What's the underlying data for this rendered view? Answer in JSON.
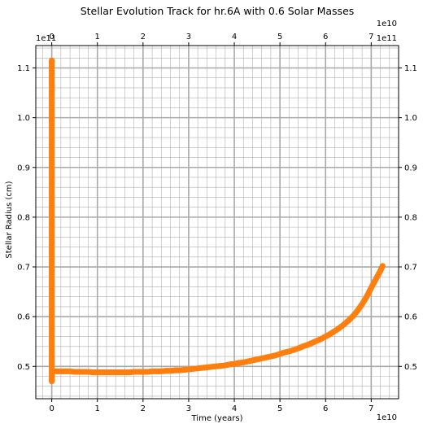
{
  "chart_data": {
    "type": "scatter",
    "title": "Stellar Evolution Track for hr.6A with 0.6 Solar Masses",
    "xlabel": "Time (years)",
    "ylabel": "Stellar Radius (cm)",
    "x_multiplier_label": "1e10",
    "y_multiplier_label": "1e11",
    "x_unit": 10000000000.0,
    "y_unit": 100000000000.0,
    "xlim": [
      -3500000000.0,
      76000000000.0
    ],
    "ylim": [
      43500000000.0,
      114500000000.0
    ],
    "x_ticks": [
      0,
      10000000000.0,
      20000000000.0,
      30000000000.0,
      40000000000.0,
      50000000000.0,
      60000000000.0,
      70000000000.0
    ],
    "x_tick_labels": [
      "0",
      "1",
      "2",
      "3",
      "4",
      "5",
      "6",
      "7"
    ],
    "y_ticks": [
      50000000000.0,
      60000000000.0,
      70000000000.0,
      80000000000.0,
      90000000000.0,
      100000000000.0,
      110000000000.0
    ],
    "y_tick_labels": [
      "0.5",
      "0.6",
      "0.7",
      "0.8",
      "0.9",
      "1.0",
      "1.1"
    ],
    "grid": true,
    "minor_grid": true,
    "marker_color": "#ff7f0e",
    "series": [
      {
        "points": [
          [
            0,
            111500000000.0
          ],
          [
            0,
            110000000000.0
          ],
          [
            0,
            108000000000.0
          ],
          [
            0,
            106000000000.0
          ],
          [
            0,
            104000000000.0
          ],
          [
            0,
            102000000000.0
          ],
          [
            0,
            100000000000.0
          ],
          [
            0,
            98000000000.0
          ],
          [
            0,
            96000000000.0
          ],
          [
            0,
            94000000000.0
          ],
          [
            0,
            92000000000.0
          ],
          [
            0,
            90000000000.0
          ],
          [
            0,
            88000000000.0
          ],
          [
            0,
            86000000000.0
          ],
          [
            0,
            84000000000.0
          ],
          [
            0,
            82000000000.0
          ],
          [
            0,
            80000000000.0
          ],
          [
            0,
            78000000000.0
          ],
          [
            0,
            76000000000.0
          ],
          [
            0,
            74000000000.0
          ],
          [
            0,
            72000000000.0
          ],
          [
            0,
            70000000000.0
          ],
          [
            0,
            68000000000.0
          ],
          [
            0,
            66000000000.0
          ],
          [
            0,
            64000000000.0
          ],
          [
            0,
            62000000000.0
          ],
          [
            0,
            60000000000.0
          ],
          [
            0,
            58000000000.0
          ],
          [
            0,
            56000000000.0
          ],
          [
            0,
            54000000000.0
          ],
          [
            0,
            52000000000.0
          ],
          [
            0,
            50000000000.0
          ],
          [
            0,
            48500000000.0
          ],
          [
            0,
            47000000000.0
          ],
          [
            50000000.0,
            48000000000.0
          ],
          [
            100000000.0,
            49000000000.0
          ],
          [
            250000000.0,
            49000000000.0
          ],
          [
            500000000.0,
            49000000000.0
          ],
          [
            1000000000.0,
            49000000000.0
          ],
          [
            2000000000.0,
            49000000000.0
          ],
          [
            3000000000.0,
            49000000000.0
          ],
          [
            4000000000.0,
            49000000000.0
          ],
          [
            5000000000.0,
            48900000000.0
          ],
          [
            6000000000.0,
            48900000000.0
          ],
          [
            7000000000.0,
            48900000000.0
          ],
          [
            8000000000.0,
            48900000000.0
          ],
          [
            9000000000.0,
            48800000000.0
          ],
          [
            10000000000.0,
            48800000000.0
          ],
          [
            11000000000.0,
            48800000000.0
          ],
          [
            12000000000.0,
            48800000000.0
          ],
          [
            13000000000.0,
            48800000000.0
          ],
          [
            14000000000.0,
            48800000000.0
          ],
          [
            15000000000.0,
            48800000000.0
          ],
          [
            16000000000.0,
            48800000000.0
          ],
          [
            17000000000.0,
            48800000000.0
          ],
          [
            18000000000.0,
            48900000000.0
          ],
          [
            19000000000.0,
            48900000000.0
          ],
          [
            20000000000.0,
            48900000000.0
          ],
          [
            21000000000.0,
            48900000000.0
          ],
          [
            22000000000.0,
            49000000000.0
          ],
          [
            23000000000.0,
            49000000000.0
          ],
          [
            24000000000.0,
            49000000000.0
          ],
          [
            25000000000.0,
            49100000000.0
          ],
          [
            26000000000.0,
            49100000000.0
          ],
          [
            27000000000.0,
            49200000000.0
          ],
          [
            28000000000.0,
            49200000000.0
          ],
          [
            29000000000.0,
            49300000000.0
          ],
          [
            30000000000.0,
            49400000000.0
          ],
          [
            31000000000.0,
            49500000000.0
          ],
          [
            32000000000.0,
            49600000000.0
          ],
          [
            33000000000.0,
            49700000000.0
          ],
          [
            34000000000.0,
            49800000000.0
          ],
          [
            35000000000.0,
            49900000000.0
          ],
          [
            36000000000.0,
            50000000000.0
          ],
          [
            37000000000.0,
            50100000000.0
          ],
          [
            38000000000.0,
            50200000000.0
          ],
          [
            39000000000.0,
            50400000000.0
          ],
          [
            40000000000.0,
            50500000000.0
          ],
          [
            41000000000.0,
            50700000000.0
          ],
          [
            42000000000.0,
            50800000000.0
          ],
          [
            43000000000.0,
            51000000000.0
          ],
          [
            44000000000.0,
            51200000000.0
          ],
          [
            45000000000.0,
            51400000000.0
          ],
          [
            46000000000.0,
            51600000000.0
          ],
          [
            47000000000.0,
            51800000000.0
          ],
          [
            48000000000.0,
            52000000000.0
          ],
          [
            49000000000.0,
            52200000000.0
          ],
          [
            50000000000.0,
            52500000000.0
          ],
          [
            51000000000.0,
            52800000000.0
          ],
          [
            52000000000.0,
            53000000000.0
          ],
          [
            53000000000.0,
            53300000000.0
          ],
          [
            54000000000.0,
            53600000000.0
          ],
          [
            55000000000.0,
            54000000000.0
          ],
          [
            56000000000.0,
            54300000000.0
          ],
          [
            57000000000.0,
            54700000000.0
          ],
          [
            58000000000.0,
            55100000000.0
          ],
          [
            59000000000.0,
            55500000000.0
          ],
          [
            60000000000.0,
            56000000000.0
          ],
          [
            61000000000.0,
            56500000000.0
          ],
          [
            62000000000.0,
            57100000000.0
          ],
          [
            63000000000.0,
            57700000000.0
          ],
          [
            64000000000.0,
            58400000000.0
          ],
          [
            65000000000.0,
            59200000000.0
          ],
          [
            66000000000.0,
            60100000000.0
          ],
          [
            67000000000.0,
            61200000000.0
          ],
          [
            68000000000.0,
            62500000000.0
          ],
          [
            69000000000.0,
            64000000000.0
          ],
          [
            70000000000.0,
            65800000000.0
          ],
          [
            71000000000.0,
            67500000000.0
          ],
          [
            72000000000.0,
            69200000000.0
          ],
          [
            72500000000.0,
            70200000000.0
          ]
        ]
      }
    ]
  }
}
